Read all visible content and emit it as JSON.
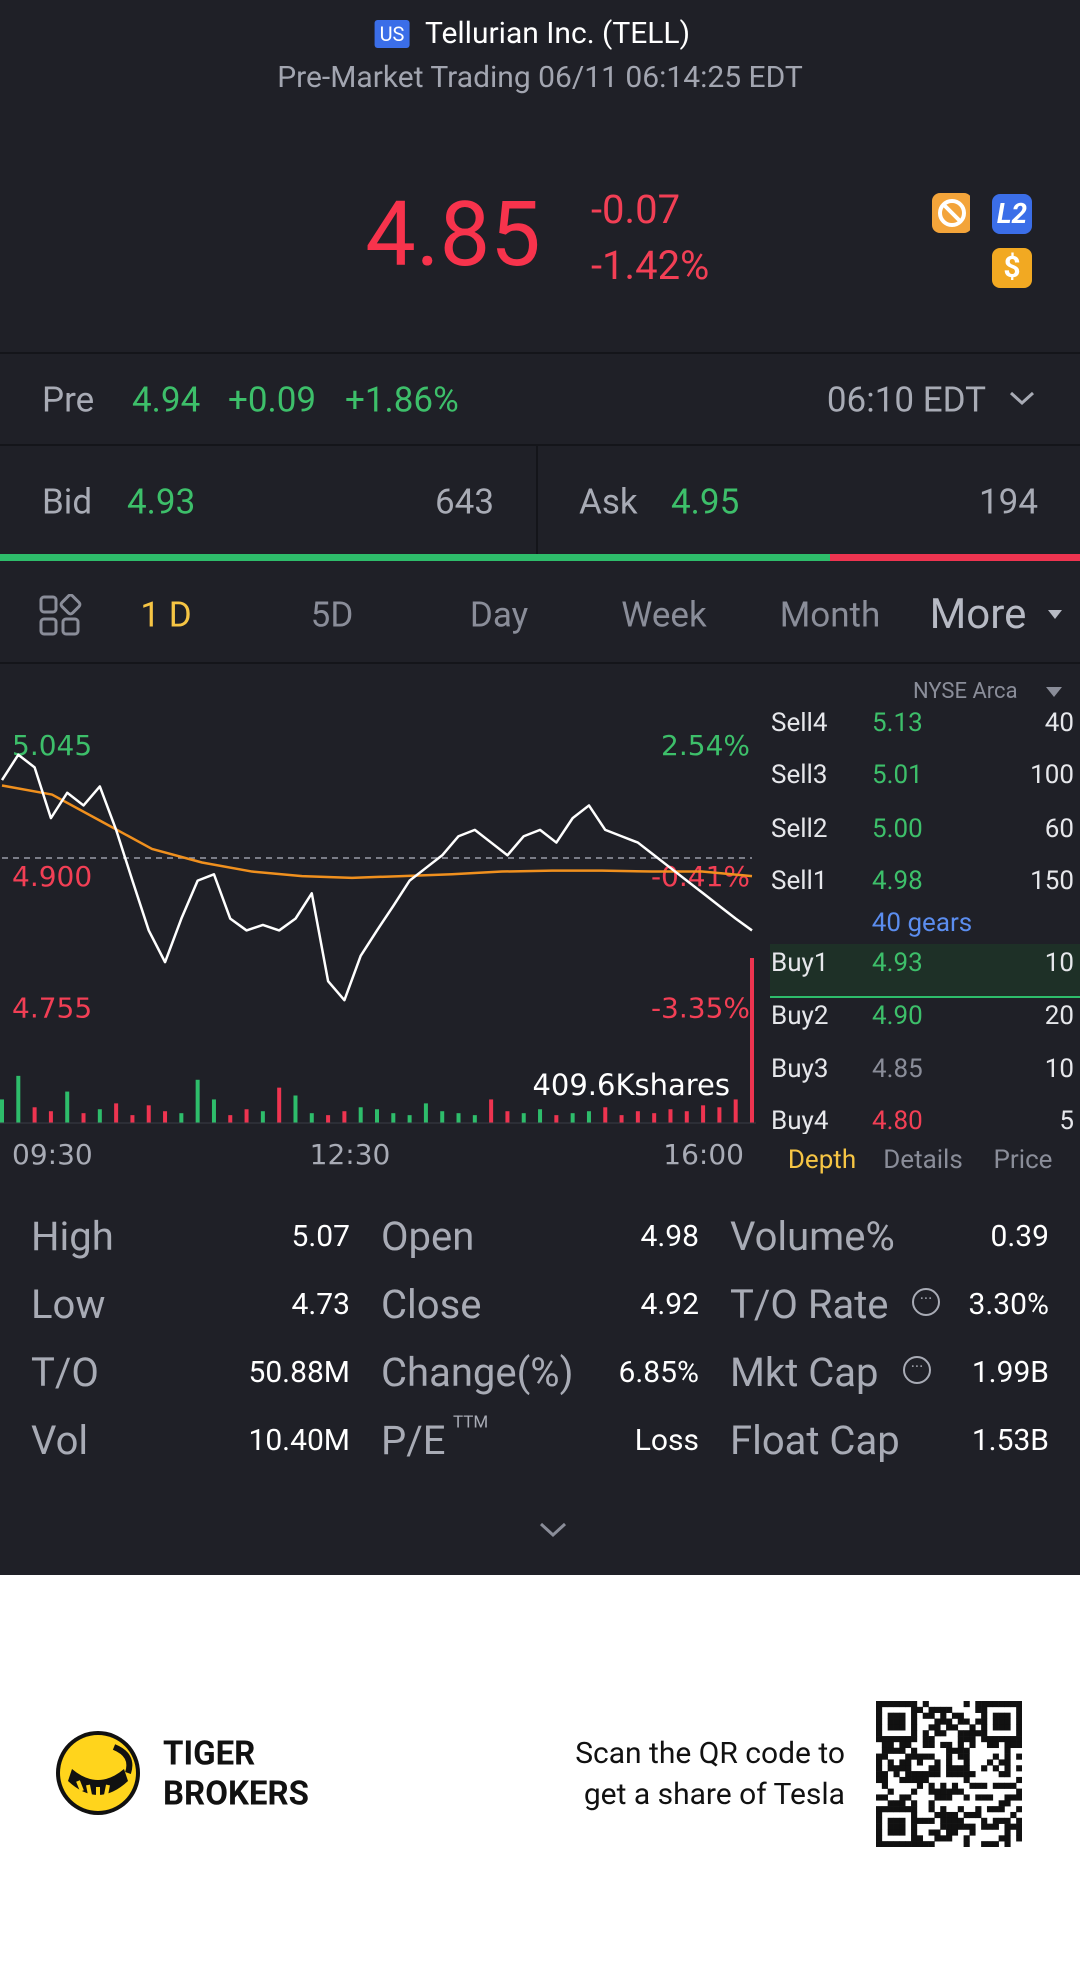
{
  "header": {
    "market_badge": "US",
    "title": "Tellurian Inc. (TELL)",
    "subtitle": "Pre-Market Trading 06/11 06:14:25 EDT"
  },
  "quote": {
    "price": "4.85",
    "change": "-0.07",
    "change_pct": "-1.42%",
    "badge_l2": "L2",
    "badge_dollar": "$"
  },
  "pre": {
    "label": "Pre",
    "price": "4.94",
    "change": "+0.09",
    "change_pct": "+1.86%",
    "time": "06:10 EDT"
  },
  "bid_ask": {
    "bid_label": "Bid",
    "bid": "4.93",
    "bid_size": 643,
    "ask_label": "Ask",
    "ask": "4.95",
    "ask_size": 194
  },
  "tabs": [
    "1 D",
    "5D",
    "Day",
    "Week",
    "Month",
    "More"
  ],
  "chart": {
    "type": "line",
    "exchange": "NYSE Arca",
    "ylim": [
      4.74,
      5.09
    ],
    "reference": 4.92,
    "yticks": [
      5.045,
      {
        "value": 4.9,
        "label": "4.900"
      },
      4.755
    ],
    "pct_labels": [
      "2.54%",
      "-0.41%",
      "-3.35%"
    ],
    "xtick_labels": [
      "09:30",
      "12:30",
      "16:00"
    ],
    "volume_label": "409.6Kshares",
    "price": [
      5.006,
      5.034,
      5.02,
      4.964,
      4.992,
      4.978,
      4.999,
      4.951,
      4.895,
      4.84,
      4.805,
      4.853,
      4.895,
      4.902,
      4.853,
      4.84,
      4.846,
      4.84,
      4.853,
      4.881,
      4.784,
      4.763,
      4.812,
      4.84,
      4.867,
      4.895,
      4.909,
      4.923,
      4.944,
      4.951,
      4.937,
      4.923,
      4.944,
      4.951,
      4.937,
      4.964,
      4.978,
      4.951,
      4.944,
      4.937,
      4.923,
      4.909,
      4.895,
      4.881,
      4.867,
      4.853,
      4.84
    ],
    "average": [
      5.0,
      4.99,
      4.96,
      4.93,
      4.915,
      4.905,
      4.9,
      4.898,
      4.9,
      4.902,
      4.905,
      4.906,
      4.906,
      4.905,
      4.905,
      4.9
    ],
    "volume": [
      60,
      120,
      40,
      30,
      80,
      25,
      35,
      50,
      20,
      45,
      30,
      25,
      110,
      60,
      20,
      35,
      30,
      90,
      70,
      25,
      20,
      30,
      40,
      35,
      25,
      20,
      50,
      30,
      25,
      20,
      60,
      30,
      25,
      35,
      20,
      25,
      30,
      40,
      20,
      30,
      25,
      35,
      30,
      45,
      40,
      60,
      420
    ]
  },
  "order_book": {
    "levels": [
      {
        "side": "Sell4",
        "price": "5.13",
        "size": "40",
        "color": "#3dbf6a"
      },
      {
        "side": "Sell3",
        "price": "5.01",
        "size": "100",
        "color": "#3dbf6a"
      },
      {
        "side": "Sell2",
        "price": "5.00",
        "size": "60",
        "color": "#3dbf6a"
      },
      {
        "side": "Sell1",
        "price": "4.98",
        "size": "150",
        "color": "#3dbf6a"
      },
      {
        "side": "Buy1",
        "price": "4.93",
        "size": "10",
        "color": "#3dbf6a"
      },
      {
        "side": "Buy2",
        "price": "4.90",
        "size": "20",
        "color": "#3dbf6a"
      },
      {
        "side": "Buy3",
        "price": "4.85",
        "size": "10",
        "color": "#8a8d99"
      },
      {
        "side": "Buy4",
        "price": "4.80",
        "size": "5",
        "color": "#f23f55"
      }
    ],
    "gears": "40 gears",
    "tabs": [
      "Depth",
      "Details",
      "Price"
    ]
  },
  "stats": [
    [
      {
        "label": "High",
        "value": "5.07"
      },
      {
        "label": "Open",
        "value": "4.98"
      },
      {
        "label": "Volume%",
        "value": "0.39"
      }
    ],
    [
      {
        "label": "Low",
        "value": "4.73"
      },
      {
        "label": "Close",
        "value": "4.92"
      },
      {
        "label": "T/O Rate",
        "value": "3.30%"
      }
    ],
    [
      {
        "label": "T/O",
        "value": "50.88M"
      },
      {
        "label": "Change(%)",
        "value": "6.85%"
      },
      {
        "label": "Mkt Cap",
        "value": "1.99B"
      }
    ],
    [
      {
        "label": "Vol",
        "value": "10.40M"
      },
      {
        "label": "P/E",
        "sup": "TTM",
        "value": "Loss"
      },
      {
        "label": "Float Cap",
        "value": "1.53B"
      }
    ]
  ],
  "footer": {
    "brand": [
      "TIGER",
      "BROKERS"
    ],
    "promo": [
      "Scan the QR code to",
      "get a share of Tesla"
    ]
  }
}
